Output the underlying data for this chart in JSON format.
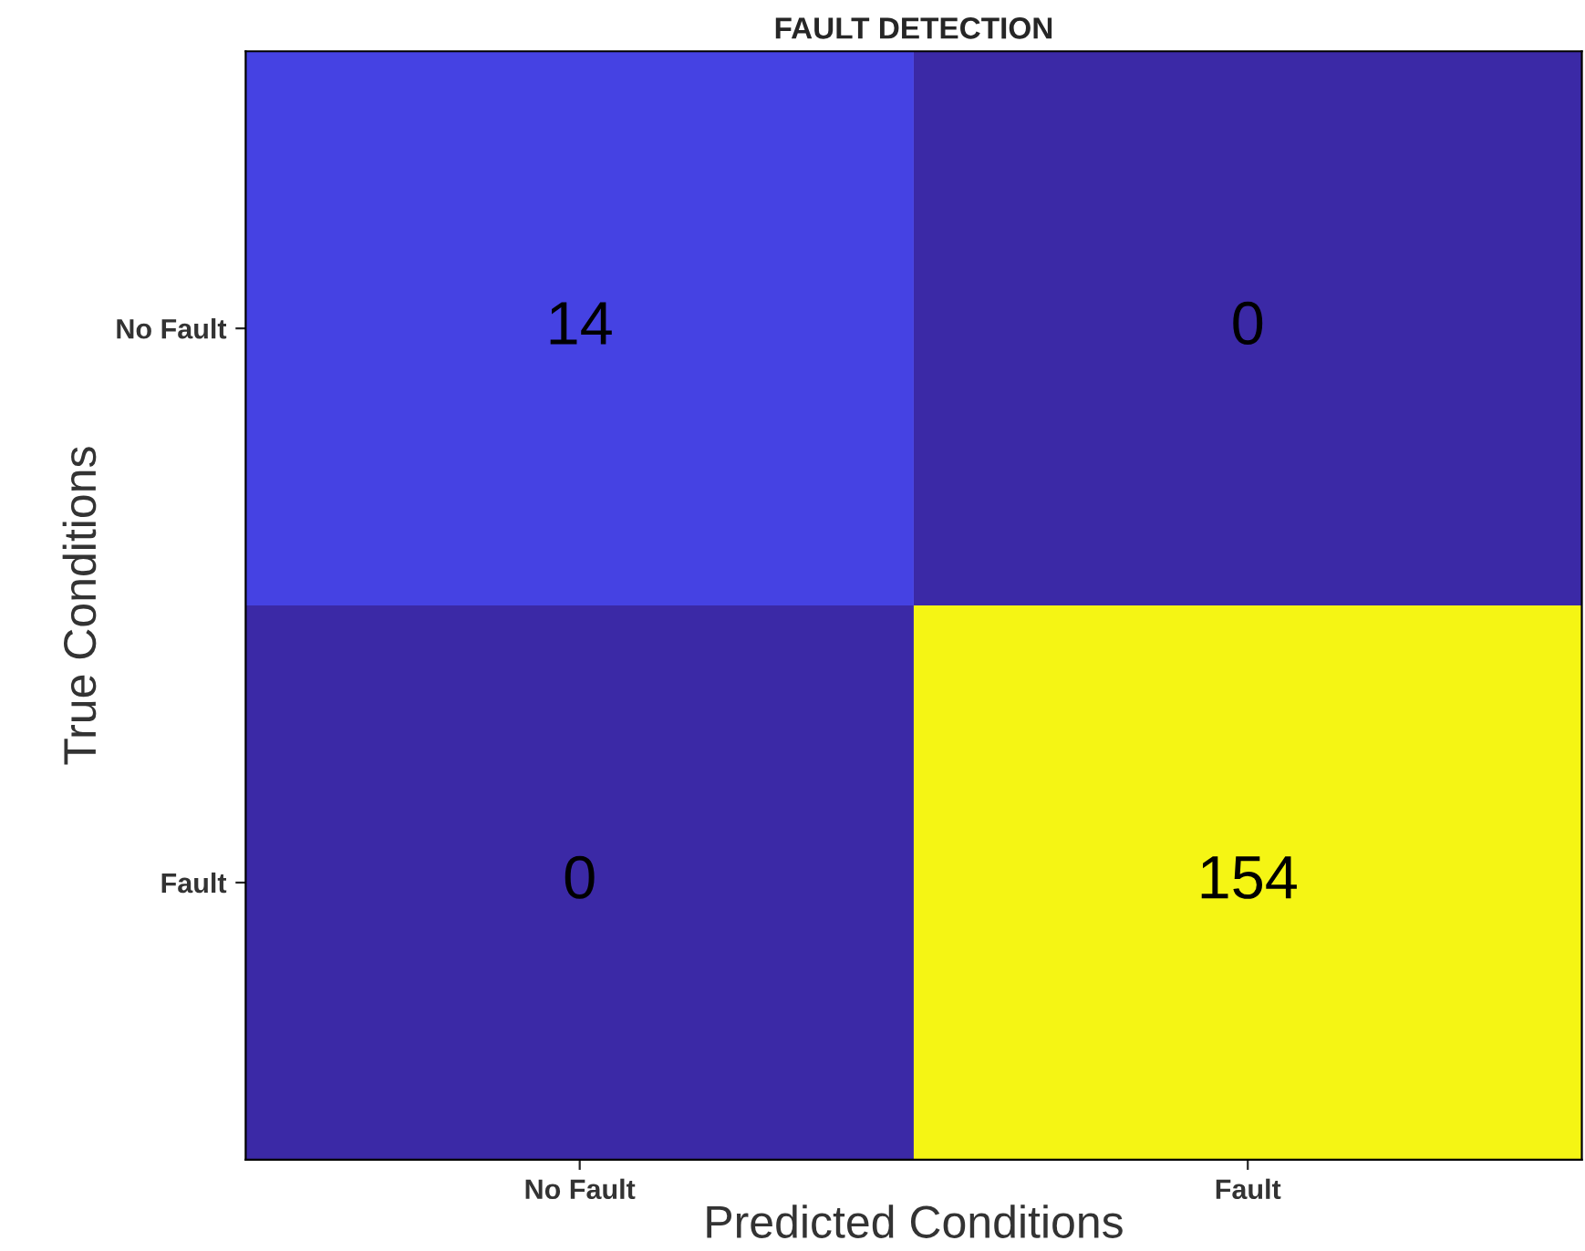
{
  "chart_data": {
    "type": "heatmap",
    "title": "FAULT DETECTION",
    "xlabel": "Predicted Conditions",
    "ylabel": "True Conditions",
    "categories": [
      "No Fault",
      "Fault"
    ],
    "y_categories": [
      "No Fault",
      "Fault"
    ],
    "cells": [
      [
        14,
        0
      ],
      [
        0,
        154
      ]
    ],
    "colors": [
      "#4542e3",
      "#3b29a6",
      "#3b29a6",
      "#f5f514"
    ],
    "data_labels": true
  }
}
